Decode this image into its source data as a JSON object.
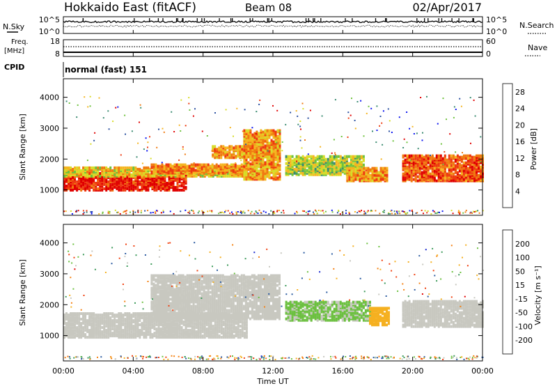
{
  "header": {
    "station": "Hokkaido East (fitACF)",
    "beam": "Beam 08",
    "date": "02/Apr/2017"
  },
  "strip": {
    "nsky_label": "N.Sky",
    "nsky_ticks": [
      "10^5",
      "10^0"
    ],
    "nsearch_label": "N.Search",
    "nsearch_ticks": [
      "10^5",
      "10^0"
    ],
    "freq_label": "Freq.",
    "freq_unit": "[MHz]",
    "freq_ticks": [
      "18",
      "8"
    ],
    "nave_label": "Nave",
    "nave_ticks": [
      "60",
      "0"
    ],
    "cpid_label": "CPID",
    "cpid_value": "normal (fast) 151"
  },
  "colors": {
    "power_scale": [
      "#0a14f0",
      "#2a4fa0",
      "#3a8a70",
      "#6ec23c",
      "#d8dc28",
      "#f5b520",
      "#f07a10",
      "#ee3a10",
      "#e00000"
    ],
    "velocity_scale": [
      "#e00000",
      "#f04010",
      "#f58010",
      "#f5b020",
      "#c8c8c0",
      "#6cc040",
      "#3c9a5a",
      "#2a5aa0",
      "#1a2ad0"
    ]
  },
  "chart_data": [
    {
      "type": "heatmap",
      "parameter": "power",
      "xlabel": "",
      "ylabel": "Slant Range [km]",
      "x_ticks": [
        "00:00",
        "04:00",
        "08:00",
        "12:00",
        "16:00",
        "20:00",
        "00:00"
      ],
      "y_ticks": [
        1000,
        2000,
        3000,
        4000
      ],
      "xlim_hours": [
        0,
        24
      ],
      "ylim_km": [
        180,
        4600
      ],
      "colorbar": {
        "label": "Power [dB]",
        "ticks": [
          4,
          8,
          12,
          16,
          20,
          24,
          28
        ],
        "range": [
          0,
          30
        ]
      },
      "echo_regions": [
        {
          "t0": 0.0,
          "t1": 7.0,
          "r0": 950,
          "r1": 1500,
          "value": 27
        },
        {
          "t0": 0.0,
          "t1": 10.5,
          "r0": 1400,
          "r1": 1700,
          "value": 17
        },
        {
          "t0": 5.0,
          "t1": 10.3,
          "r0": 1500,
          "r1": 1800,
          "value": 21
        },
        {
          "t0": 10.3,
          "t1": 12.4,
          "r0": 1300,
          "r1": 2900,
          "value": 20
        },
        {
          "t0": 8.5,
          "t1": 11.0,
          "r0": 2000,
          "r1": 2400,
          "value": 20
        },
        {
          "t0": 12.7,
          "t1": 17.2,
          "r0": 1450,
          "r1": 2050,
          "value": 14
        },
        {
          "t0": 16.2,
          "t1": 18.6,
          "r0": 1250,
          "r1": 1700,
          "value": 20
        },
        {
          "t0": 19.4,
          "t1": 24.0,
          "r0": 1250,
          "r1": 2100,
          "value": 24
        }
      ]
    },
    {
      "type": "heatmap",
      "parameter": "velocity",
      "xlabel": "Time UT",
      "ylabel": "Slant Range [km]",
      "x_ticks": [
        "00:00",
        "04:00",
        "08:00",
        "12:00",
        "16:00",
        "20:00",
        "00:00"
      ],
      "y_ticks": [
        1000,
        2000,
        3000,
        4000
      ],
      "xlim_hours": [
        0,
        24
      ],
      "ylim_km": [
        180,
        4600
      ],
      "colorbar": {
        "label": "Velocity [m s⁻¹]",
        "ticks": [
          200,
          100,
          50,
          15,
          -15,
          -50,
          -100,
          -200
        ],
        "range": [
          -250,
          250
        ]
      },
      "echo_regions": [
        {
          "t0": 0.0,
          "t1": 10.5,
          "r0": 900,
          "r1": 1700,
          "value": 0
        },
        {
          "t0": 5.0,
          "t1": 12.4,
          "r0": 1500,
          "r1": 2900,
          "value": 0
        },
        {
          "t0": 12.7,
          "t1": 17.5,
          "r0": 1450,
          "r1": 2050,
          "value": 35
        },
        {
          "t0": 17.5,
          "t1": 18.6,
          "r0": 1300,
          "r1": 1850,
          "value": -60
        },
        {
          "t0": 19.4,
          "t1": 24.0,
          "r0": 1250,
          "r1": 2100,
          "value": 0
        }
      ]
    }
  ]
}
